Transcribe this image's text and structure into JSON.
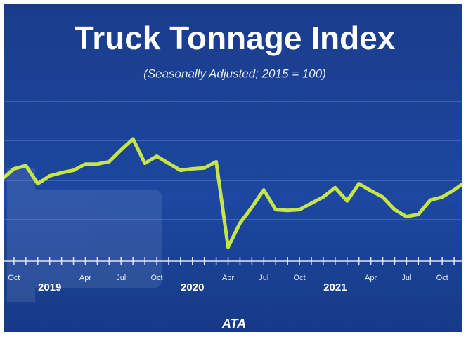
{
  "chart_data": {
    "type": "line",
    "title": "Truck Tonnage Index",
    "subtitle": "(Seasonally Adjusted; 2015 = 100)",
    "logo": "ATA",
    "categories": [
      null,
      "Oct",
      null,
      null,
      "2019",
      null,
      null,
      "Apr",
      null,
      null,
      "Jul",
      null,
      null,
      "Oct",
      null,
      null,
      "2020",
      null,
      null,
      "Apr",
      null,
      null,
      "Jul",
      null,
      null,
      "Oct",
      null,
      null,
      "2021",
      null,
      null,
      "Apr",
      null,
      null,
      "Jul",
      null,
      null,
      "Oct",
      null,
      null
    ],
    "series": [
      {
        "color": "#c6e548",
        "values": [
          110.2,
          111.5,
          111.9,
          109.6,
          110.6,
          111.0,
          111.3,
          112.1,
          112.1,
          112.4,
          113.9,
          115.3,
          112.2,
          113.1,
          112.2,
          111.3,
          111.5,
          111.6,
          112.4,
          101.5,
          104.6,
          106.6,
          108.8,
          106.3,
          106.2,
          106.3,
          107.1,
          107.9,
          109.1,
          107.4,
          109.6,
          108.7,
          107.9,
          106.3,
          105.4,
          105.7,
          107.5,
          107.9,
          108.8,
          109.9
        ]
      }
    ],
    "ylim": [
      100,
      122
    ]
  }
}
